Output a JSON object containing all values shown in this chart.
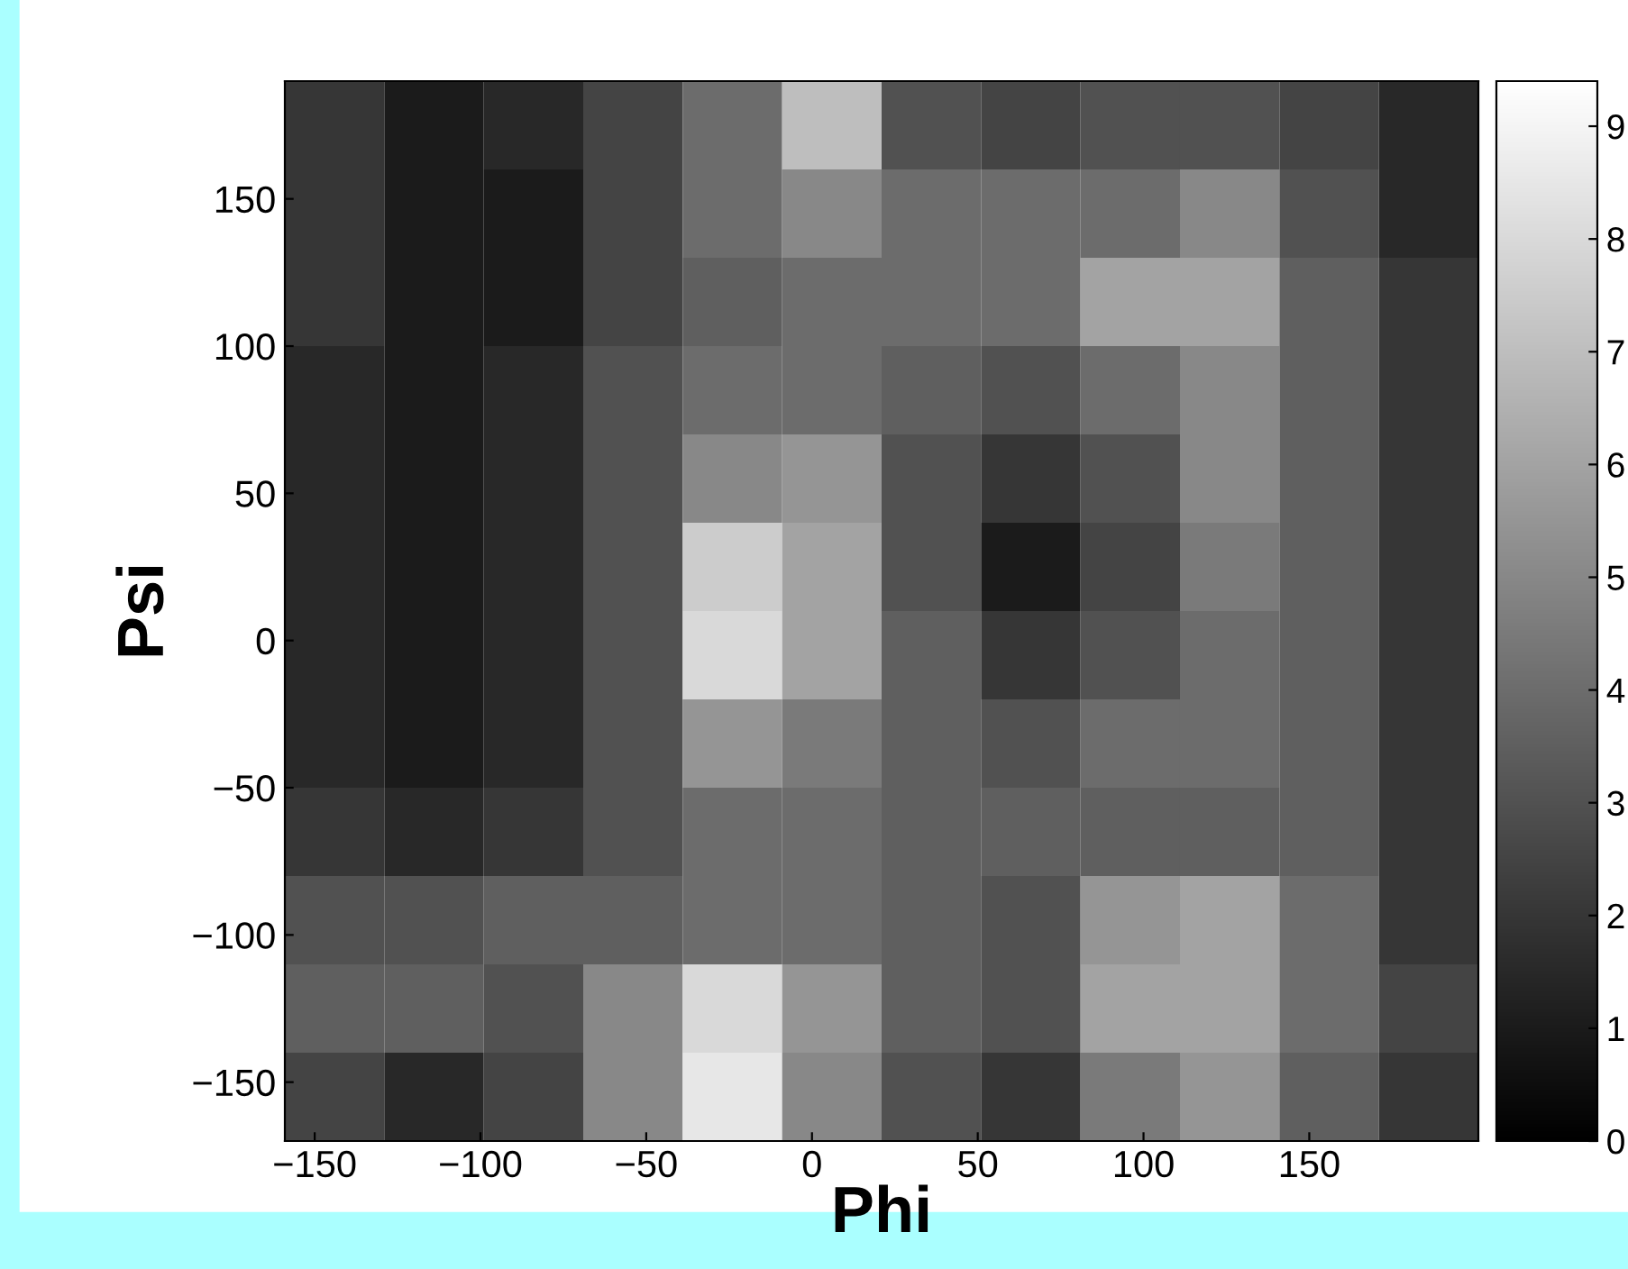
{
  "chart_data": {
    "type": "heatmap",
    "xlabel": "Phi",
    "ylabel": "Psi",
    "xlim": [
      -159,
      201
    ],
    "ylim": [
      -170,
      190
    ],
    "xticks": [
      {
        "value": -150,
        "label": "−150"
      },
      {
        "value": -100,
        "label": "−100"
      },
      {
        "value": -50,
        "label": "−50"
      },
      0,
      50,
      100,
      150
    ],
    "yticks": [
      {
        "value": -150,
        "label": "−150"
      },
      {
        "value": -100,
        "label": "−100"
      },
      {
        "value": -50,
        "label": "−50"
      },
      0,
      50,
      100,
      150
    ],
    "clim": [
      0,
      9.4
    ],
    "cticks": [
      0,
      1,
      2,
      3,
      4,
      5,
      6,
      7,
      8,
      9
    ],
    "cells": [
      [
        2,
        1,
        1.5,
        2.5,
        4,
        7,
        3,
        2.5,
        3,
        3,
        2.5,
        1.5
      ],
      [
        2,
        1,
        1,
        2.5,
        4,
        5,
        4,
        4,
        4,
        5,
        3,
        1.5
      ],
      [
        2,
        1,
        1,
        2.5,
        3.5,
        4,
        4,
        4,
        6,
        6,
        3.5,
        2
      ],
      [
        1.5,
        1,
        1.5,
        3,
        4,
        4,
        3.5,
        3,
        4,
        5,
        3.5,
        2
      ],
      [
        1.5,
        1,
        1.5,
        3,
        5,
        5.5,
        3,
        2,
        3,
        5,
        3.5,
        2
      ],
      [
        1.5,
        1,
        1.5,
        3,
        7.5,
        6,
        3,
        1,
        2.5,
        4.5,
        3.5,
        2
      ],
      [
        1.5,
        1,
        1.5,
        3,
        8,
        6,
        3.5,
        2,
        3,
        4,
        3.5,
        2
      ],
      [
        1.5,
        1,
        1.5,
        3,
        5.5,
        4.5,
        3.5,
        3,
        4,
        4,
        3.5,
        2
      ],
      [
        2,
        1.5,
        2,
        3,
        4,
        4,
        3.5,
        3.5,
        3.5,
        3.5,
        3.5,
        2
      ],
      [
        3,
        3,
        3.5,
        3.5,
        4,
        4,
        3.5,
        3,
        5.5,
        6,
        4,
        2
      ],
      [
        3.5,
        3.5,
        3,
        5,
        8,
        5.5,
        3.5,
        3,
        6,
        6,
        4,
        2.5
      ],
      [
        2.5,
        1.5,
        2.5,
        5,
        8.5,
        5,
        3,
        2,
        4.5,
        5.5,
        3.5,
        2
      ]
    ]
  }
}
